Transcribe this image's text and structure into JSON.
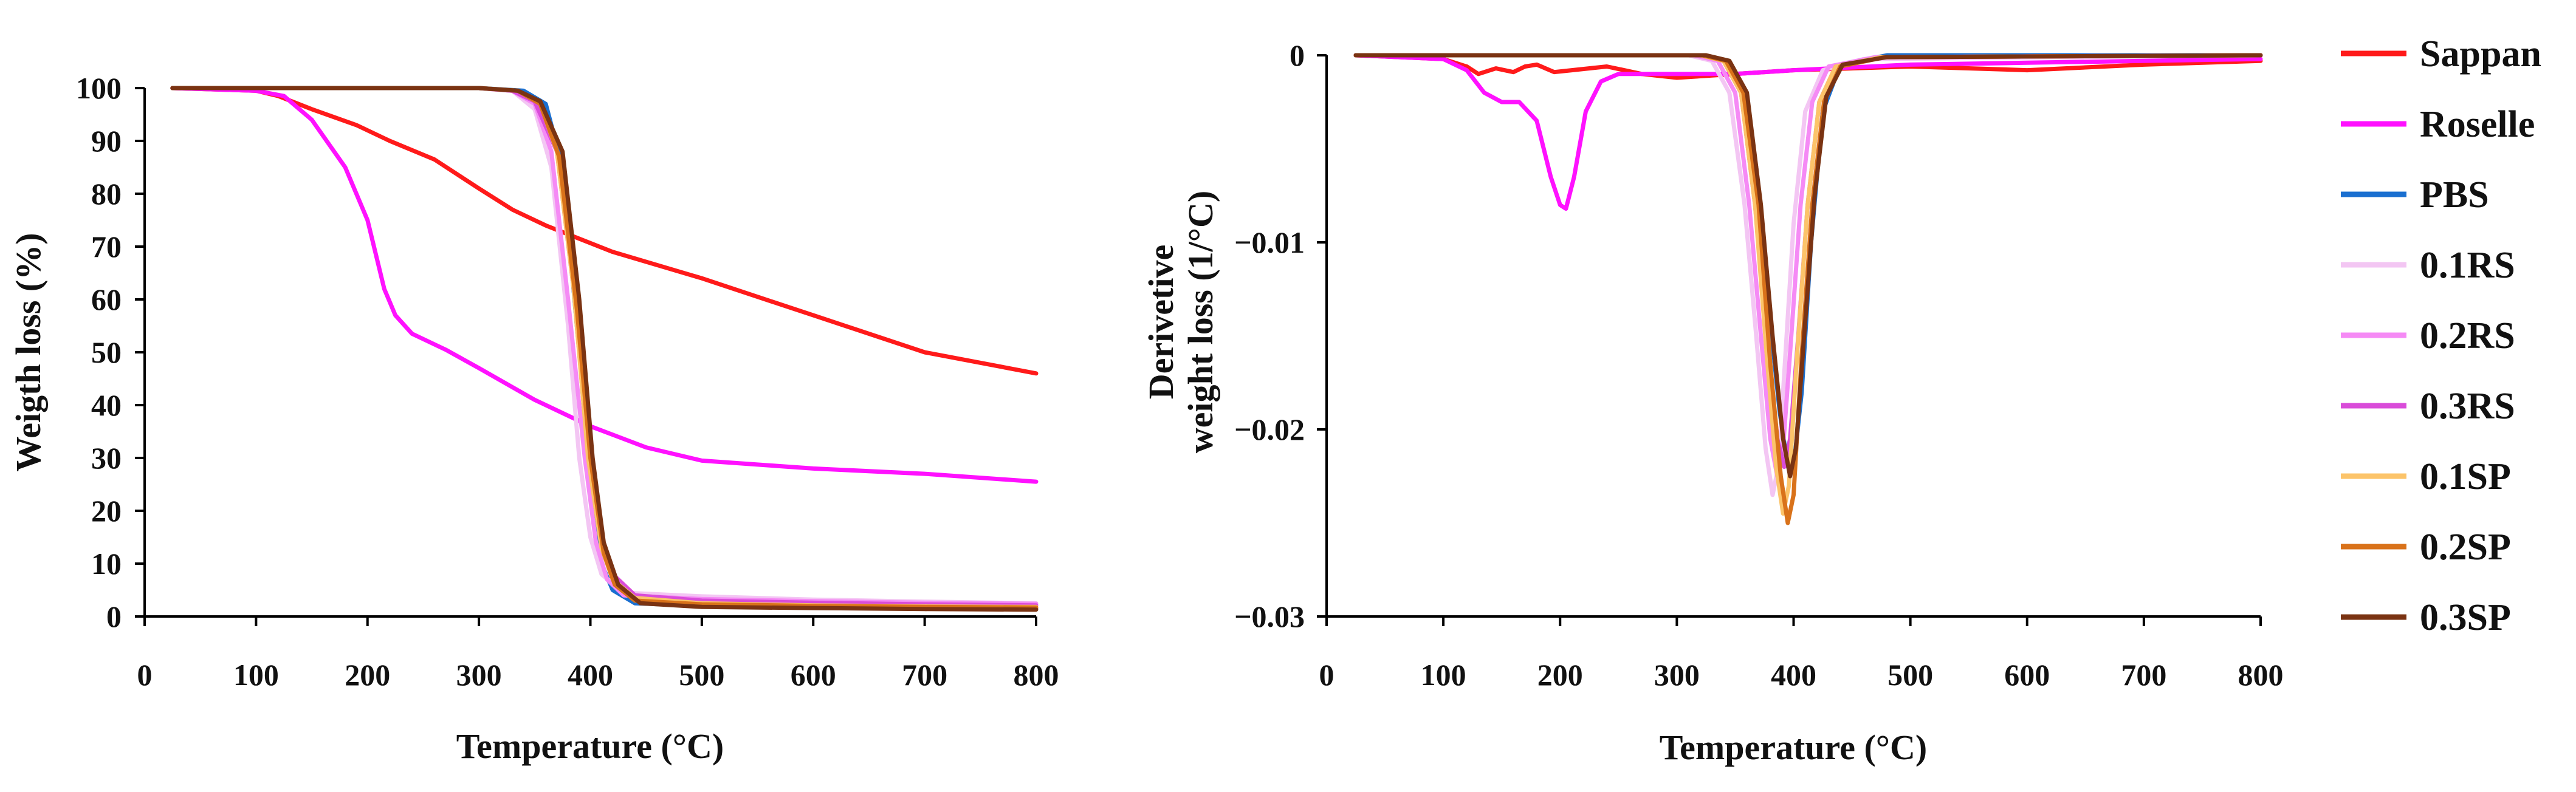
{
  "chart_data": [
    {
      "type": "line",
      "title": "",
      "xlabel": "Temperature (°C)",
      "ylabel": "Weigth loss (%)",
      "xlim": [
        0,
        800
      ],
      "ylim": [
        0,
        100
      ],
      "xticks": [
        0,
        100,
        200,
        300,
        400,
        500,
        600,
        700,
        800
      ],
      "yticks": [
        0,
        10,
        20,
        30,
        40,
        50,
        60,
        70,
        80,
        90,
        100
      ],
      "grid": false,
      "series": [
        {
          "name": "Sappan",
          "color": "#ff1a1a",
          "x": [
            25,
            100,
            120,
            150,
            190,
            220,
            260,
            300,
            330,
            360,
            390,
            420,
            500,
            600,
            700,
            800
          ],
          "y": [
            100,
            99.5,
            98.5,
            96,
            93,
            90,
            86.5,
            81,
            77,
            74,
            71.5,
            69,
            64,
            57,
            50,
            46
          ]
        },
        {
          "name": "Roselle",
          "color": "#ff11ff",
          "x": [
            25,
            100,
            125,
            150,
            180,
            200,
            215,
            225,
            240,
            270,
            300,
            350,
            400,
            450,
            500,
            600,
            700,
            800
          ],
          "y": [
            100,
            99.5,
            98.5,
            94,
            85,
            75,
            62,
            57,
            53.5,
            50.5,
            47,
            41,
            36,
            32,
            29.5,
            28,
            27,
            25.5
          ]
        },
        {
          "name": "PBS",
          "color": "#1a6fd0",
          "x": [
            25,
            300,
            340,
            360,
            375,
            390,
            400,
            410,
            420,
            440,
            500,
            600,
            700,
            800
          ],
          "y": [
            100,
            100,
            99.5,
            97,
            85,
            50,
            25,
            10,
            5,
            2.5,
            2,
            1.8,
            1.6,
            1.5
          ]
        },
        {
          "name": "0.1RS",
          "color": "#f3c6f3",
          "x": [
            25,
            300,
            330,
            350,
            365,
            380,
            390,
            400,
            410,
            430,
            500,
            600,
            700,
            800
          ],
          "y": [
            100,
            100,
            99.5,
            96,
            85,
            55,
            30,
            15,
            8,
            4.5,
            3.8,
            3.2,
            2.8,
            2.5
          ]
        },
        {
          "name": "0.2RS",
          "color": "#f58af5",
          "x": [
            25,
            300,
            330,
            350,
            365,
            380,
            395,
            405,
            415,
            430,
            500,
            600,
            700,
            800
          ],
          "y": [
            100,
            100,
            99.5,
            97,
            88,
            60,
            30,
            14,
            7,
            4,
            3.3,
            2.9,
            2.6,
            2.4
          ]
        },
        {
          "name": "0.3RS",
          "color": "#d94cd9",
          "x": [
            25,
            300,
            330,
            350,
            370,
            385,
            400,
            410,
            420,
            440,
            500,
            600,
            700,
            800
          ],
          "y": [
            100,
            100,
            99.5,
            97.5,
            88,
            62,
            30,
            15,
            8,
            4,
            3,
            2.6,
            2.3,
            2.1
          ]
        },
        {
          "name": "0.1SP",
          "color": "#fcc46a",
          "x": [
            25,
            300,
            335,
            355,
            370,
            385,
            398,
            410,
            420,
            440,
            500,
            600,
            700,
            800
          ],
          "y": [
            100,
            100,
            99.5,
            97,
            88,
            62,
            30,
            13,
            7,
            3.5,
            2.5,
            2.1,
            1.9,
            1.8
          ]
        },
        {
          "name": "0.2SP",
          "color": "#d9721a",
          "x": [
            25,
            300,
            335,
            355,
            372,
            388,
            400,
            412,
            422,
            440,
            500,
            600,
            700,
            800
          ],
          "y": [
            100,
            100,
            99.5,
            97,
            87,
            58,
            30,
            12,
            6,
            3,
            2.3,
            2,
            1.8,
            1.7
          ]
        },
        {
          "name": "0.3SP",
          "color": "#7a3312",
          "x": [
            25,
            300,
            335,
            355,
            375,
            390,
            402,
            412,
            425,
            445,
            500,
            600,
            700,
            800
          ],
          "y": [
            100,
            100,
            99.5,
            97.5,
            88,
            60,
            30,
            14,
            6,
            2.5,
            1.8,
            1.6,
            1.4,
            1.3
          ]
        }
      ]
    },
    {
      "type": "line",
      "title": "",
      "xlabel": "Temperature (°C)",
      "ylabel_line1": "Derivetive",
      "ylabel_line2": "weight loss (1/°C)",
      "xlim": [
        0,
        800
      ],
      "ylim": [
        -0.03,
        0
      ],
      "xticks": [
        0,
        100,
        200,
        300,
        400,
        500,
        600,
        700,
        800
      ],
      "yticks": [
        0,
        -0.01,
        -0.02,
        -0.03
      ],
      "ytick_labels": [
        "0",
        "−0.01",
        "−0.02",
        "−0.03"
      ],
      "grid": false,
      "series": [
        {
          "name": "Sappan",
          "color": "#ff1a1a",
          "x": [
            25,
            100,
            120,
            130,
            145,
            160,
            170,
            180,
            195,
            210,
            240,
            270,
            300,
            350,
            400,
            500,
            600,
            700,
            800
          ],
          "y": [
            0,
            -0.0002,
            -0.0006,
            -0.001,
            -0.0007,
            -0.0009,
            -0.0006,
            -0.0005,
            -0.0009,
            -0.0008,
            -0.0006,
            -0.001,
            -0.0012,
            -0.001,
            -0.0008,
            -0.0006,
            -0.0008,
            -0.0005,
            -0.0003
          ]
        },
        {
          "name": "Roselle",
          "color": "#ff11ff",
          "x": [
            25,
            100,
            120,
            135,
            150,
            165,
            180,
            192,
            200,
            205,
            212,
            222,
            235,
            250,
            300,
            350,
            400,
            500,
            600,
            800
          ],
          "y": [
            0,
            -0.0002,
            -0.0008,
            -0.002,
            -0.0025,
            -0.0025,
            -0.0035,
            -0.0065,
            -0.008,
            -0.0082,
            -0.0065,
            -0.003,
            -0.0014,
            -0.001,
            -0.001,
            -0.001,
            -0.0008,
            -0.0005,
            -0.0004,
            -0.0002
          ]
        },
        {
          "name": "PBS",
          "color": "#1a6fd0",
          "x": [
            25,
            320,
            340,
            355,
            368,
            378,
            388,
            395,
            400,
            407,
            415,
            425,
            440,
            480,
            800
          ],
          "y": [
            0,
            0,
            -0.0003,
            -0.0015,
            -0.006,
            -0.013,
            -0.019,
            -0.022,
            -0.022,
            -0.018,
            -0.01,
            -0.003,
            -0.0005,
            0,
            0
          ]
        },
        {
          "name": "0.1RS",
          "color": "#f3c6f3",
          "x": [
            25,
            310,
            330,
            345,
            358,
            368,
            376,
            382,
            387,
            393,
            400,
            410,
            425,
            460,
            800
          ],
          "y": [
            0,
            0,
            -0.0003,
            -0.002,
            -0.008,
            -0.015,
            -0.021,
            -0.0235,
            -0.022,
            -0.016,
            -0.009,
            -0.003,
            -0.0008,
            -0.0002,
            0
          ]
        },
        {
          "name": "0.2RS",
          "color": "#f58af5",
          "x": [
            25,
            315,
            335,
            350,
            362,
            372,
            380,
            386,
            391,
            398,
            406,
            416,
            430,
            470,
            800
          ],
          "y": [
            0,
            0,
            -0.0003,
            -0.002,
            -0.008,
            -0.015,
            -0.0205,
            -0.0225,
            -0.021,
            -0.015,
            -0.008,
            -0.0025,
            -0.0006,
            -0.0001,
            0
          ]
        },
        {
          "name": "0.3RS",
          "color": "#d94cd9",
          "x": [
            25,
            320,
            340,
            355,
            367,
            377,
            386,
            392,
            397,
            404,
            412,
            422,
            436,
            475,
            800
          ],
          "y": [
            0,
            0,
            -0.0003,
            -0.002,
            -0.008,
            -0.015,
            -0.0205,
            -0.022,
            -0.0205,
            -0.015,
            -0.008,
            -0.0025,
            -0.0006,
            -0.0001,
            0
          ]
        },
        {
          "name": "0.1SP",
          "color": "#fcc46a",
          "x": [
            25,
            320,
            340,
            355,
            367,
            377,
            385,
            391,
            396,
            403,
            412,
            422,
            436,
            475,
            800
          ],
          "y": [
            0,
            0,
            -0.0003,
            -0.002,
            -0.008,
            -0.016,
            -0.022,
            -0.0245,
            -0.023,
            -0.016,
            -0.008,
            -0.0025,
            -0.0006,
            -0.0001,
            0
          ]
        },
        {
          "name": "0.2SP",
          "color": "#d9721a",
          "x": [
            25,
            322,
            342,
            357,
            370,
            380,
            389,
            395,
            400,
            407,
            416,
            426,
            440,
            478,
            800
          ],
          "y": [
            0,
            0,
            -0.0003,
            -0.002,
            -0.008,
            -0.0165,
            -0.0225,
            -0.025,
            -0.0235,
            -0.016,
            -0.008,
            -0.0025,
            -0.0006,
            -0.0001,
            0
          ]
        },
        {
          "name": "0.3SP",
          "color": "#7a3312",
          "x": [
            25,
            325,
            345,
            360,
            372,
            382,
            391,
            397,
            402,
            409,
            418,
            428,
            442,
            480,
            800
          ],
          "y": [
            0,
            0,
            -0.0003,
            -0.002,
            -0.008,
            -0.015,
            -0.0205,
            -0.0225,
            -0.021,
            -0.015,
            -0.0075,
            -0.0022,
            -0.0005,
            -0.0001,
            0
          ]
        }
      ]
    }
  ],
  "legend": [
    {
      "name": "Sappan",
      "color": "#ff1a1a"
    },
    {
      "name": "Roselle",
      "color": "#ff11ff"
    },
    {
      "name": "PBS",
      "color": "#1a6fd0"
    },
    {
      "name": "0.1RS",
      "color": "#f3c6f3"
    },
    {
      "name": "0.2RS",
      "color": "#f58af5"
    },
    {
      "name": "0.3RS",
      "color": "#d94cd9"
    },
    {
      "name": "0.1SP",
      "color": "#fcc46a"
    },
    {
      "name": "0.2SP",
      "color": "#d9721a"
    },
    {
      "name": "0.3SP",
      "color": "#7a3312"
    }
  ]
}
